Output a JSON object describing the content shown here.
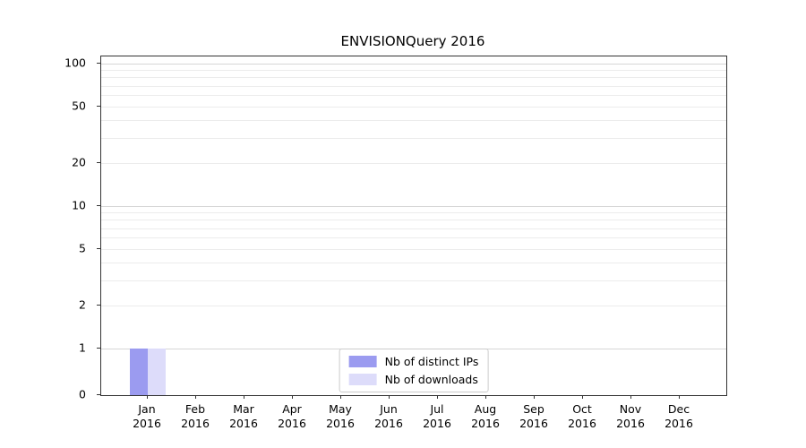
{
  "title": "ENVISIONQuery 2016",
  "chart_data": {
    "type": "bar",
    "title": "ENVISIONQuery 2016",
    "xlabel": "",
    "ylabel": "",
    "yscale": "symlog",
    "ylim": [
      0,
      112
    ],
    "grid": true,
    "legend_position": "lower center",
    "year": "2016",
    "categories": [
      "Jan",
      "Feb",
      "Mar",
      "Apr",
      "May",
      "Jun",
      "Jul",
      "Aug",
      "Sep",
      "Oct",
      "Nov",
      "Dec"
    ],
    "series": [
      {
        "name": "Nb of distinct IPs",
        "color": "#9b9bf0",
        "values": [
          1,
          0,
          0,
          0,
          0,
          0,
          0,
          0,
          0,
          0,
          0,
          0
        ]
      },
      {
        "name": "Nb of downloads",
        "color": "#dddcfa",
        "values": [
          1,
          0,
          0,
          0,
          0,
          0,
          0,
          0,
          0,
          0,
          0,
          0
        ]
      }
    ],
    "y_tick_labels": [
      100,
      50,
      20,
      10,
      5,
      2,
      1,
      0
    ],
    "y_minor_gridlines": [
      2,
      3,
      4,
      5,
      6,
      7,
      8,
      9,
      20,
      30,
      40,
      50,
      60,
      70,
      80,
      90
    ],
    "y_major_gridlines": [
      1,
      10,
      100
    ]
  }
}
